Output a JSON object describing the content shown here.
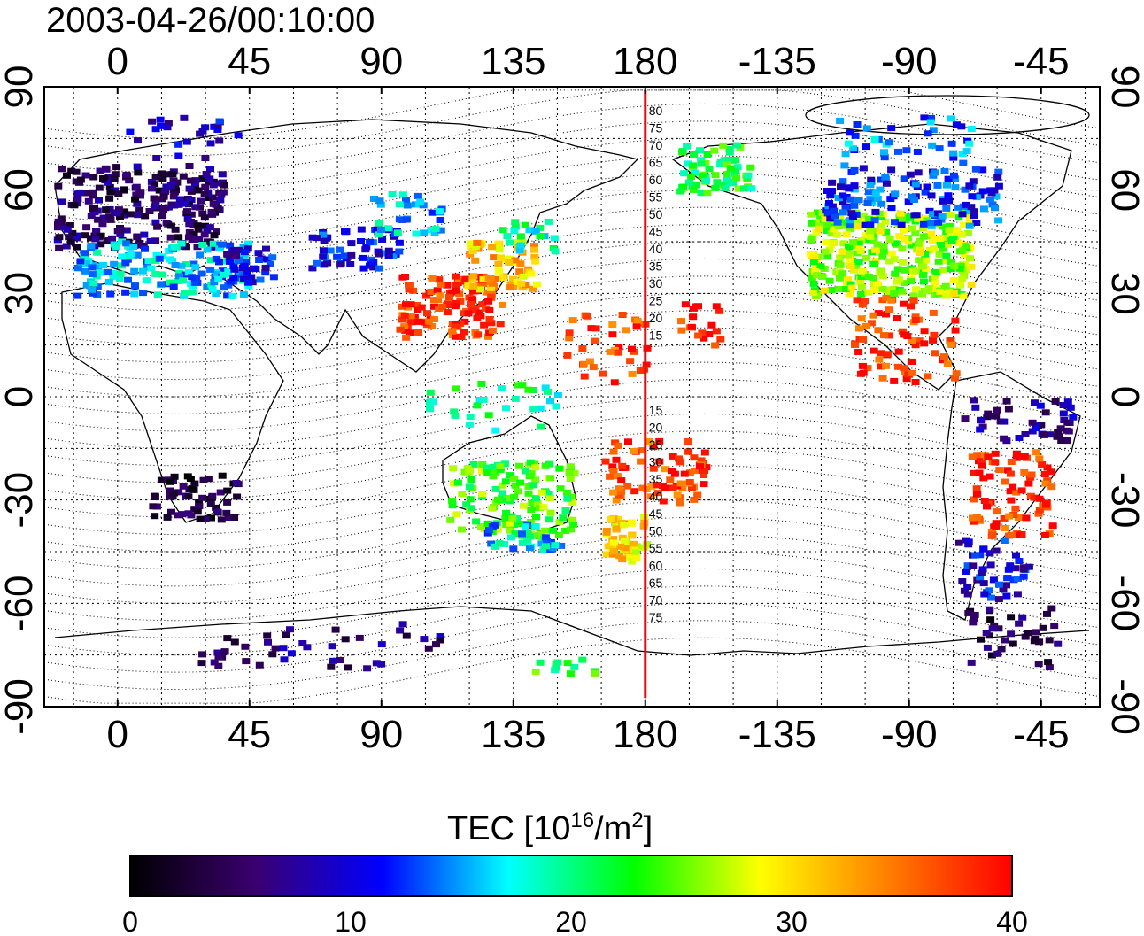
{
  "title": "2003-04-26/00:10:00",
  "map": {
    "lon_ticks": [
      "0",
      "45",
      "90",
      "135",
      "180",
      "-135",
      "-90",
      "-45"
    ],
    "lat_ticks": [
      "90",
      "60",
      "30",
      "0",
      "-30",
      "-60",
      "-90"
    ],
    "lon_range": [
      -25,
      335
    ],
    "lat_range": [
      -90,
      90
    ],
    "grid": "dotted",
    "meridian_line": {
      "lon": 180,
      "color": "#e01010"
    },
    "maglat_labels_north": [
      "80",
      "75",
      "70",
      "65",
      "60",
      "55",
      "50",
      "45",
      "40",
      "35",
      "30",
      "25",
      "20",
      "15"
    ],
    "maglat_labels_south": [
      "15",
      "20",
      "25",
      "30",
      "35",
      "40",
      "45",
      "50",
      "55",
      "60",
      "65",
      "70",
      "75"
    ]
  },
  "colorbar": {
    "label": "TEC  [10",
    "label_exp": "16",
    "label_mid": "/m",
    "label_exp2": "2",
    "label_end": "]",
    "ticks": [
      "0",
      "10",
      "20",
      "30",
      "40"
    ],
    "range": [
      0,
      40
    ],
    "colors": [
      "#000000",
      "#3a0070",
      "#0000ff",
      "#00ffff",
      "#00ff00",
      "#ffff00",
      "#ff8000",
      "#ff0000"
    ]
  },
  "tec_regions": [
    {
      "lon": [
        -22,
        35
      ],
      "lat": [
        44,
        68
      ],
      "tec": 5,
      "n": 260
    },
    {
      "lon": [
        -15,
        45
      ],
      "lat": [
        30,
        46
      ],
      "tec": 16,
      "n": 160
    },
    {
      "lon": [
        35,
        52
      ],
      "lat": [
        34,
        44
      ],
      "tec": 10,
      "n": 40
    },
    {
      "lon": [
        2,
        40
      ],
      "lat": [
        70,
        82
      ],
      "tec": 9,
      "n": 25
    },
    {
      "lon": [
        65,
        95
      ],
      "lat": [
        38,
        50
      ],
      "tec": 11,
      "n": 60
    },
    {
      "lon": [
        85,
        110
      ],
      "lat": [
        48,
        60
      ],
      "tec": 16,
      "n": 35
    },
    {
      "lon": [
        95,
        130
      ],
      "lat": [
        18,
        36
      ],
      "tec": 38,
      "n": 130
    },
    {
      "lon": [
        118,
        142
      ],
      "lat": [
        32,
        46
      ],
      "tec": 31,
      "n": 70
    },
    {
      "lon": [
        130,
        148
      ],
      "lat": [
        42,
        52
      ],
      "tec": 19,
      "n": 20
    },
    {
      "lon": [
        150,
        180
      ],
      "lat": [
        5,
        25
      ],
      "tec": 37,
      "n": 40
    },
    {
      "lon": [
        100,
        150
      ],
      "lat": [
        -10,
        5
      ],
      "tec": 20,
      "n": 30
    },
    {
      "lon": [
        112,
        155
      ],
      "lat": [
        -40,
        -18
      ],
      "tec": 24,
      "n": 140
    },
    {
      "lon": [
        125,
        150
      ],
      "lat": [
        -44,
        -36
      ],
      "tec": 16,
      "n": 30
    },
    {
      "lon": [
        165,
        180
      ],
      "lat": [
        -47,
        -34
      ],
      "tec": 30,
      "n": 55
    },
    {
      "lon": [
        165,
        200
      ],
      "lat": [
        -30,
        -12
      ],
      "tec": 37,
      "n": 80
    },
    {
      "lon": [
        10,
        40
      ],
      "lat": [
        -35,
        -22
      ],
      "tec": 3,
      "n": 60
    },
    {
      "lon": [
        190,
        215
      ],
      "lat": [
        60,
        74
      ],
      "tec": 22,
      "n": 70
    },
    {
      "lon": [
        235,
        290
      ],
      "lat": [
        30,
        55
      ],
      "tec": 26,
      "n": 330
    },
    {
      "lon": [
        240,
        300
      ],
      "lat": [
        50,
        68
      ],
      "tec": 12,
      "n": 140
    },
    {
      "lon": [
        245,
        290
      ],
      "lat": [
        68,
        82
      ],
      "tec": 14,
      "n": 40
    },
    {
      "lon": [
        250,
        285
      ],
      "lat": [
        5,
        30
      ],
      "tec": 38,
      "n": 80
    },
    {
      "lon": [
        190,
        205
      ],
      "lat": [
        15,
        28
      ],
      "tec": 38,
      "n": 20
    },
    {
      "lon": [
        290,
        318
      ],
      "lat": [
        -40,
        -15
      ],
      "tec": 38,
      "n": 90
    },
    {
      "lon": [
        285,
        325
      ],
      "lat": [
        -12,
        0
      ],
      "tec": 7,
      "n": 50
    },
    {
      "lon": [
        285,
        310
      ],
      "lat": [
        -58,
        -40
      ],
      "tec": 10,
      "n": 50
    },
    {
      "lon": [
        288,
        320
      ],
      "lat": [
        -78,
        -60
      ],
      "tec": 4,
      "n": 40
    },
    {
      "lon": [
        25,
        110
      ],
      "lat": [
        -78,
        -65
      ],
      "tec": 6,
      "n": 45
    },
    {
      "lon": [
        140,
        175
      ],
      "lat": [
        -80,
        -75
      ],
      "tec": 22,
      "n": 12
    }
  ]
}
